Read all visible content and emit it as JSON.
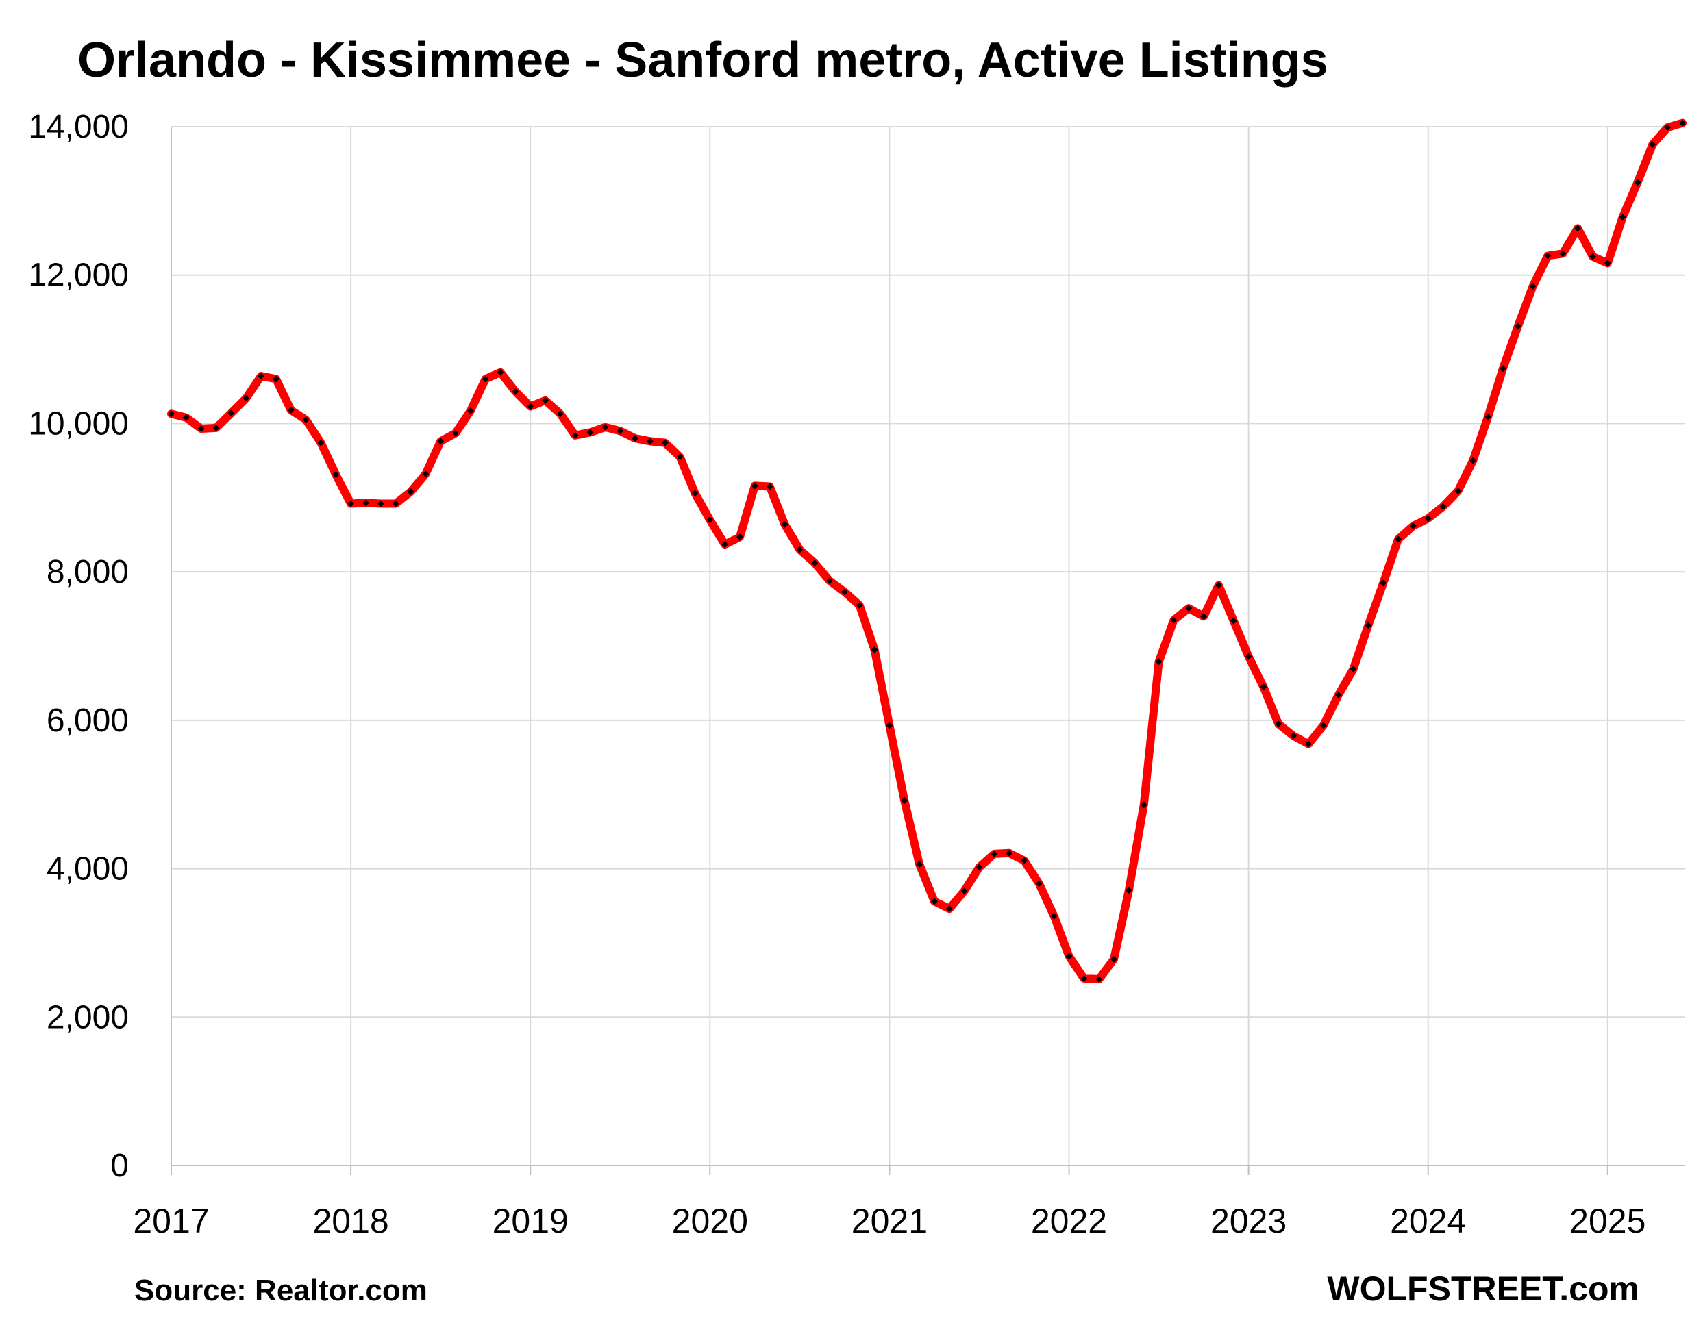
{
  "chart_data": {
    "type": "line",
    "title": "Orlando - Kissimmee - Sanford metro, Active Listings",
    "xlabel": "",
    "ylabel": "",
    "ylim": [
      0,
      14000
    ],
    "yticks": [
      0,
      2000,
      4000,
      6000,
      8000,
      10000,
      12000,
      14000
    ],
    "ytick_labels": [
      "0",
      "2,000",
      "4,000",
      "6,000",
      "8,000",
      "10,000",
      "12,000",
      "14,000"
    ],
    "xticks": [
      2017,
      2018,
      2019,
      2020,
      2021,
      2022,
      2023,
      2024,
      2025
    ],
    "xtick_labels": [
      "2017",
      "2018",
      "2019",
      "2020",
      "2021",
      "2022",
      "2023",
      "2024",
      "2025"
    ],
    "xlim": [
      "2017-01",
      "2025-06"
    ],
    "grid": true,
    "line_color": "#ff0000",
    "marker_color": "#000000",
    "series": [
      {
        "x": [
          "2017-01",
          "2017-02",
          "2017-03",
          "2017-04",
          "2017-05",
          "2017-06",
          "2017-07",
          "2017-08",
          "2017-09",
          "2017-10",
          "2017-11",
          "2017-12",
          "2018-01",
          "2018-02",
          "2018-03",
          "2018-04",
          "2018-05",
          "2018-06",
          "2018-07",
          "2018-08",
          "2018-09",
          "2018-10",
          "2018-11",
          "2018-12",
          "2019-01",
          "2019-02",
          "2019-03",
          "2019-04",
          "2019-05",
          "2019-06",
          "2019-07",
          "2019-08",
          "2019-09",
          "2019-10",
          "2019-11",
          "2019-12",
          "2020-01",
          "2020-02",
          "2020-03",
          "2020-04",
          "2020-05",
          "2020-06",
          "2020-07",
          "2020-08",
          "2020-09",
          "2020-10",
          "2020-11",
          "2020-12",
          "2021-01",
          "2021-02",
          "2021-03",
          "2021-04",
          "2021-05",
          "2021-06",
          "2021-07",
          "2021-08",
          "2021-09",
          "2021-10",
          "2021-11",
          "2021-12",
          "2022-01",
          "2022-02",
          "2022-03",
          "2022-04",
          "2022-05",
          "2022-06",
          "2022-07",
          "2022-08",
          "2022-09",
          "2022-10",
          "2022-11",
          "2022-12",
          "2023-01",
          "2023-02",
          "2023-03",
          "2023-04",
          "2023-05",
          "2023-06",
          "2023-07",
          "2023-08",
          "2023-09",
          "2023-10",
          "2023-11",
          "2023-12",
          "2024-01",
          "2024-02",
          "2024-03",
          "2024-04",
          "2024-05",
          "2024-06",
          "2024-07",
          "2024-08",
          "2024-09",
          "2024-10",
          "2024-11",
          "2024-12",
          "2025-01",
          "2025-02",
          "2025-03",
          "2025-04",
          "2025-05",
          "2025-06"
        ],
        "values": [
          10130,
          10080,
          9930,
          9940,
          10140,
          10340,
          10640,
          10600,
          10180,
          10050,
          9740,
          9310,
          8920,
          8930,
          8920,
          8920,
          9080,
          9320,
          9760,
          9870,
          10170,
          10600,
          10690,
          10430,
          10230,
          10310,
          10130,
          9840,
          9880,
          9950,
          9900,
          9800,
          9760,
          9740,
          9550,
          9060,
          8700,
          8370,
          8470,
          9160,
          9150,
          8640,
          8300,
          8120,
          7880,
          7730,
          7550,
          6950,
          5930,
          4920,
          4060,
          3560,
          3460,
          3700,
          4020,
          4200,
          4210,
          4110,
          3800,
          3360,
          2820,
          2520,
          2510,
          2780,
          3710,
          4860,
          6790,
          7350,
          7510,
          7400,
          7820,
          7340,
          6860,
          6450,
          5950,
          5790,
          5680,
          5930,
          6340,
          6690,
          7280,
          7850,
          8440,
          8620,
          8720,
          8880,
          9090,
          9500,
          10090,
          10740,
          11310,
          11850,
          12260,
          12290,
          12630,
          12250,
          12160,
          12780,
          13250,
          13760,
          13990,
          14050
        ]
      }
    ]
  },
  "footer": {
    "source": "Source: Realtor.com",
    "brand": "WOLFSTREET.com"
  }
}
